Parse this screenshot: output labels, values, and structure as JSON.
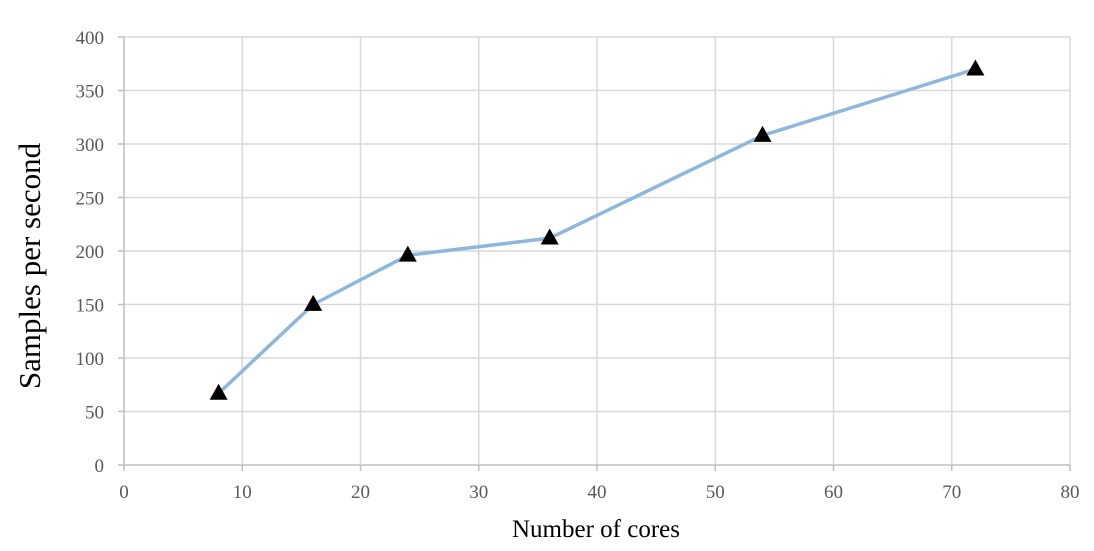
{
  "chart_data": {
    "type": "line",
    "title": "",
    "xlabel": "Number of cores",
    "ylabel": "Samples per second",
    "xlim": [
      0,
      80
    ],
    "ylim": [
      0,
      400
    ],
    "x_ticks": [
      "0",
      "10",
      "20",
      "30",
      "40",
      "50",
      "60",
      "70",
      "80"
    ],
    "y_ticks": [
      "0",
      "50",
      "100",
      "150",
      "200",
      "250",
      "300",
      "350",
      "400"
    ],
    "grid": true,
    "legend": "none",
    "series": [
      {
        "x": [
          8,
          16,
          24,
          36,
          54,
          72
        ],
        "y": [
          67,
          150,
          196,
          212,
          308,
          370
        ],
        "line_color": "#8db8dc",
        "marker": "triangle",
        "marker_color": "#000000"
      }
    ]
  }
}
